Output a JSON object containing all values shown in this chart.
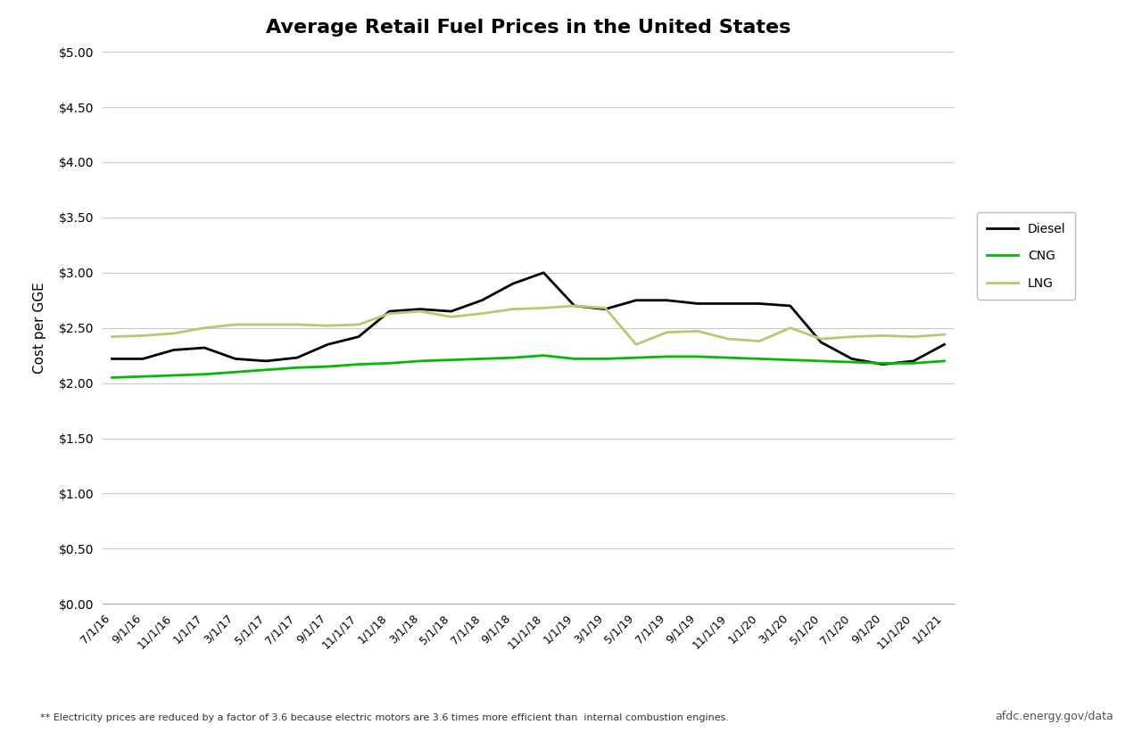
{
  "title": "Average Retail Fuel Prices in the United States",
  "ylabel": "Cost per GGE",
  "ylim": [
    0.0,
    5.0
  ],
  "yticks": [
    0.0,
    0.5,
    1.0,
    1.5,
    2.0,
    2.5,
    3.0,
    3.5,
    4.0,
    4.5,
    5.0
  ],
  "footnote": "** Electricity prices are reduced by a factor of 3.6 because electric motors are 3.6 times more efficient than  internal combustion engines.",
  "source": "afdc.energy.gov/data",
  "x_labels": [
    "7/1/16",
    "9/1/16",
    "11/1/16",
    "1/1/17",
    "3/1/17",
    "5/1/17",
    "7/1/17",
    "9/1/17",
    "11/1/17",
    "1/1/18",
    "3/1/18",
    "5/1/18",
    "7/1/18",
    "9/1/18",
    "11/1/18",
    "1/1/19",
    "3/1/19",
    "5/1/19",
    "7/1/19",
    "9/1/19",
    "11/1/19",
    "1/1/20",
    "3/1/20",
    "5/1/20",
    "7/1/20",
    "9/1/20",
    "11/1/20",
    "1/1/21"
  ],
  "diesel": [
    2.22,
    2.22,
    2.3,
    2.32,
    2.22,
    2.2,
    2.23,
    2.35,
    2.42,
    2.65,
    2.67,
    2.65,
    2.75,
    2.9,
    3.0,
    2.7,
    2.67,
    2.75,
    2.75,
    2.72,
    2.72,
    2.72,
    2.7,
    2.37,
    2.22,
    2.17,
    2.2,
    2.35
  ],
  "cng": [
    2.05,
    2.06,
    2.07,
    2.08,
    2.1,
    2.12,
    2.14,
    2.15,
    2.17,
    2.18,
    2.2,
    2.21,
    2.22,
    2.23,
    2.25,
    2.22,
    2.22,
    2.23,
    2.24,
    2.24,
    2.23,
    2.22,
    2.21,
    2.2,
    2.19,
    2.18,
    2.18,
    2.2
  ],
  "lng": [
    2.42,
    2.43,
    2.45,
    2.5,
    2.53,
    2.53,
    2.53,
    2.52,
    2.53,
    2.63,
    2.65,
    2.6,
    2.63,
    2.67,
    2.68,
    2.7,
    2.68,
    2.35,
    2.46,
    2.47,
    2.4,
    2.38,
    2.5,
    2.4,
    2.42,
    2.43,
    2.42,
    2.44
  ],
  "diesel_color": "#000000",
  "cng_color": "#00bb00",
  "lng_color": "#b8c870",
  "background_color": "#ffffff",
  "grid_color": "#c8c8c8",
  "spine_color": "#aaaaaa"
}
